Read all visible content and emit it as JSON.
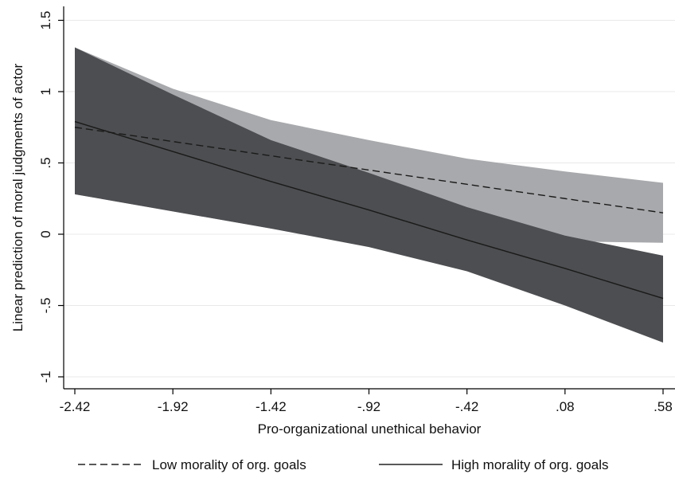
{
  "chart_data": {
    "type": "line",
    "xlabel": "Pro-organizational unethical behavior",
    "ylabel": "Linear prediction of moral judgments of actor",
    "x_ticks": [
      -2.42,
      -1.92,
      -1.42,
      -0.92,
      -0.42,
      0.08,
      0.58
    ],
    "x_tick_labels": [
      "-2.42",
      "-1.92",
      "-1.42",
      "-.92",
      "-.42",
      ".08",
      ".58"
    ],
    "y_ticks": [
      -1,
      -0.5,
      0,
      0.5,
      1,
      1.5
    ],
    "y_tick_labels": [
      "-1",
      "-.5",
      "0",
      ".5",
      "1",
      "1.5"
    ],
    "xlim": [
      -2.42,
      0.58
    ],
    "ylim": [
      -1.05,
      1.55
    ],
    "grid": true,
    "legend_position": "bottom",
    "x": [
      -2.42,
      -1.92,
      -1.42,
      -0.92,
      -0.42,
      0.08,
      0.58
    ],
    "series": [
      {
        "name": "Low morality of org. goals",
        "style": "dashed",
        "band_color": "#a8a9ac",
        "values": [
          0.75,
          0.65,
          0.55,
          0.45,
          0.35,
          0.25,
          0.15
        ],
        "ci_lower": [
          0.28,
          0.16,
          0.04,
          -0.08,
          -0.2,
          -0.05,
          -0.06
        ],
        "ci_upper": [
          1.31,
          1.02,
          0.8,
          0.66,
          0.53,
          0.44,
          0.36
        ]
      },
      {
        "name": "High morality of org. goals",
        "style": "solid",
        "band_color": "#4d4e51",
        "values": [
          0.79,
          0.58,
          0.37,
          0.17,
          -0.04,
          -0.24,
          -0.45
        ],
        "ci_lower": [
          0.28,
          0.16,
          0.04,
          -0.09,
          -0.26,
          -0.5,
          -0.76
        ],
        "ci_upper": [
          1.31,
          0.98,
          0.66,
          0.43,
          0.19,
          -0.01,
          -0.15
        ]
      }
    ]
  }
}
